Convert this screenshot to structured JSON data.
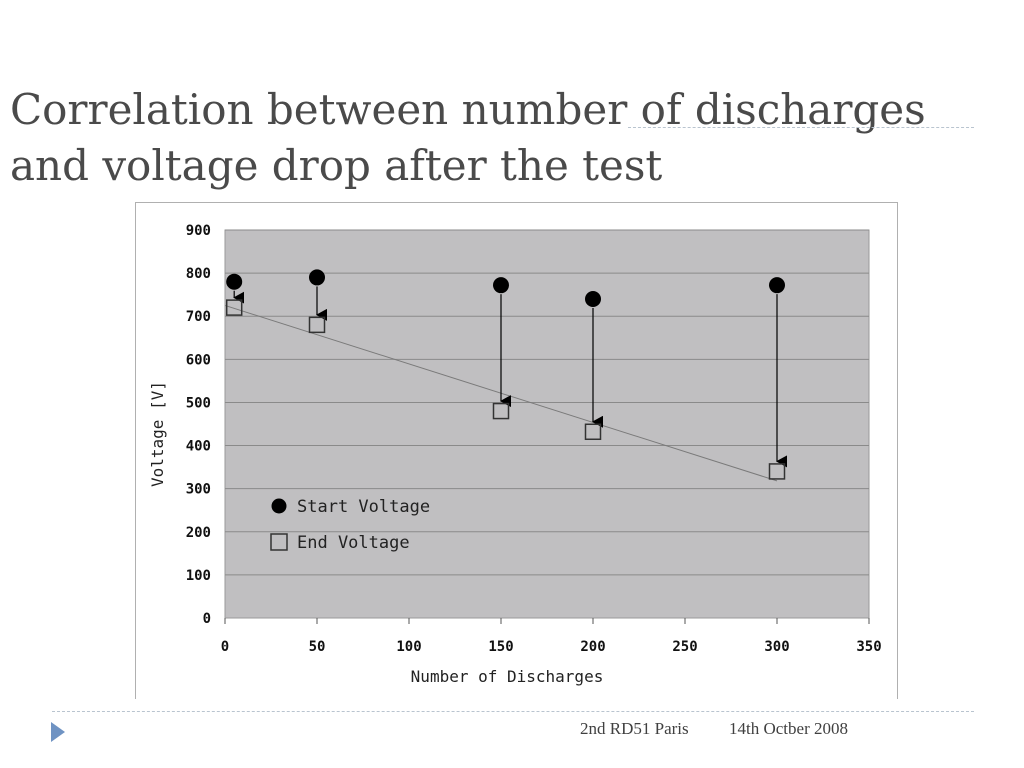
{
  "slide": {
    "title_line1": "Correlation between number of discharges",
    "title_line2": "and voltage drop after the test",
    "footer_event": "2nd RD51 Paris",
    "footer_date": "14th Octber 2008"
  },
  "colors": {
    "plot_background": "#c0bfc1",
    "gridline": "#8a8a8a",
    "marker": "#000000",
    "trendline": "#7a7a7a",
    "accent_arrow": "#6f93c3"
  },
  "chart_data": {
    "type": "scatter",
    "title": "",
    "xlabel": "Number of Discharges",
    "ylabel": "Voltage [V]",
    "xlim": [
      0,
      350
    ],
    "ylim": [
      0,
      900
    ],
    "x_ticks": [
      0,
      50,
      100,
      150,
      200,
      250,
      300,
      350
    ],
    "y_ticks": [
      0,
      100,
      200,
      300,
      400,
      500,
      600,
      700,
      800,
      900
    ],
    "grid": "horizontal",
    "legend_position": "lower-left",
    "series": [
      {
        "name": "Start Voltage",
        "marker": "filled-circle",
        "x": [
          5,
          50,
          150,
          200,
          300
        ],
        "y": [
          780,
          790,
          772,
          740,
          772
        ]
      },
      {
        "name": "End Voltage",
        "marker": "open-square",
        "x": [
          5,
          50,
          150,
          200,
          300
        ],
        "y": [
          720,
          680,
          480,
          432,
          340
        ]
      }
    ],
    "drop_arrows": "start-to-end",
    "trendline": {
      "x": [
        0,
        300
      ],
      "y": [
        725,
        318
      ]
    }
  }
}
